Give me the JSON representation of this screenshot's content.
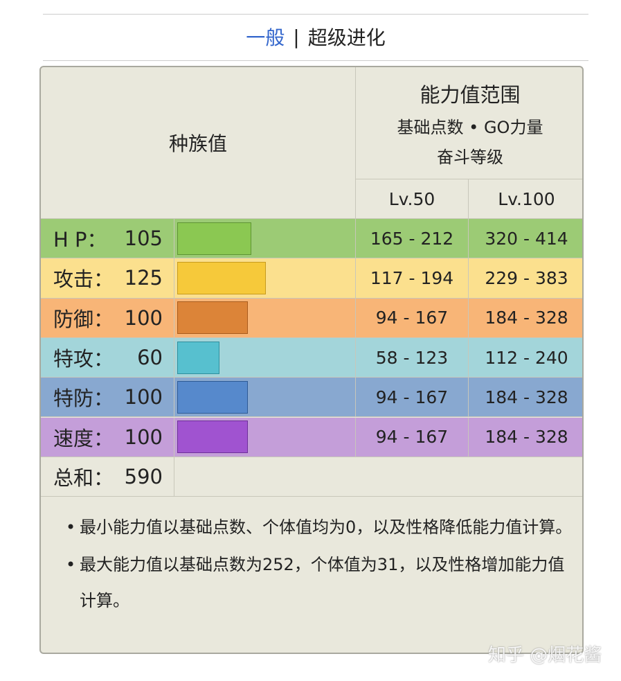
{
  "tabs": {
    "normal": "一般",
    "separator": "|",
    "mega": "超级进化"
  },
  "table": {
    "base_stats_header": "种族值",
    "range_header": "能力值范围",
    "range_sub1": "基础点数 • GO力量",
    "range_sub2": "奋斗等级",
    "level_headers": [
      "Lv.50",
      "Lv.100"
    ],
    "rows": [
      {
        "label": "H P：",
        "value": 105,
        "lv50": "165 - 212",
        "lv100": "320 - 414",
        "color": "#9ccb75",
        "bar_color": "#8bc852",
        "bar_border": "#5e9433"
      },
      {
        "label": "攻击：",
        "value": 125,
        "lv50": "117 - 194",
        "lv100": "229 - 383",
        "color": "#fbe08e",
        "bar_color": "#f6c93a",
        "bar_border": "#c79b1e"
      },
      {
        "label": "防御：",
        "value": 100,
        "lv50": "94 - 167",
        "lv100": "184 - 328",
        "color": "#f8b577",
        "bar_color": "#dc8438",
        "bar_border": "#a85b1c"
      },
      {
        "label": "特攻：",
        "value": 60,
        "lv50": "58 - 123",
        "lv100": "112 - 240",
        "color": "#a3d5da",
        "bar_color": "#57c0cf",
        "bar_border": "#2f8e9c"
      },
      {
        "label": "特防：",
        "value": 100,
        "lv50": "94 - 167",
        "lv100": "184 - 328",
        "color": "#88a8d0",
        "bar_color": "#5689cc",
        "bar_border": "#2e5a96"
      },
      {
        "label": "速度：",
        "value": 100,
        "lv50": "94 - 167",
        "lv100": "184 - 328",
        "color": "#c49ed9",
        "bar_color": "#a053d0",
        "bar_border": "#6e2f99"
      }
    ],
    "total_label": "总和：",
    "total_value": 590,
    "notes": [
      "最小能力值以基础点数、个体值均为0，以及性格降低能力值计算。",
      "最大能力值以基础点数为252，个体值为31，以及性格增加能力值计算。"
    ]
  },
  "watermark": "知乎 @烟花酱"
}
